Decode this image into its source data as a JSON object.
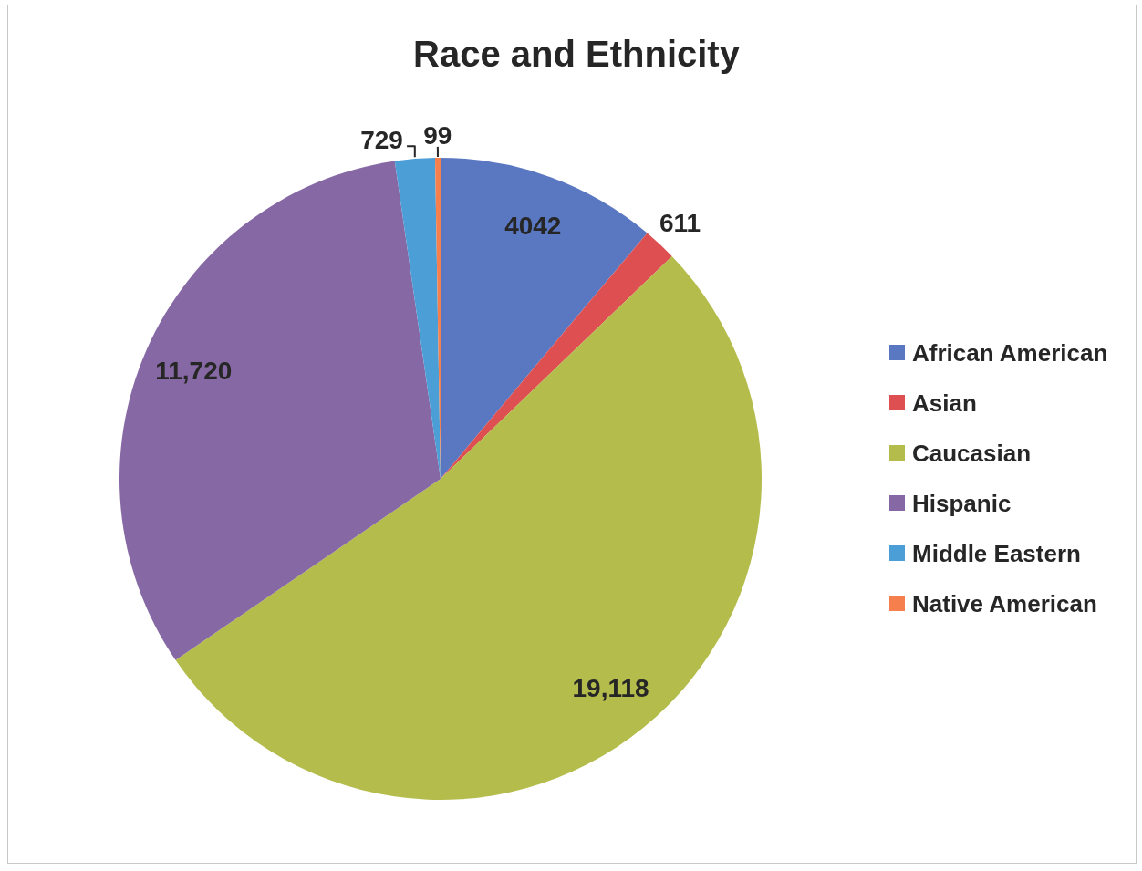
{
  "chart_data": {
    "type": "pie",
    "title": "Race and Ethnicity",
    "categories": [
      "African American",
      "Asian",
      "Caucasian",
      "Hispanic",
      "Middle Eastern",
      "Native American"
    ],
    "values": [
      4042,
      611,
      19118,
      11720,
      729,
      99
    ],
    "value_labels": [
      "4042",
      "611",
      "19,118",
      "11,720",
      "729",
      "99"
    ],
    "colors": [
      "#5a78c2",
      "#dd4f50",
      "#b4bc4c",
      "#8668a4",
      "#4c9ed6",
      "#f5804e"
    ],
    "legend": "right"
  }
}
